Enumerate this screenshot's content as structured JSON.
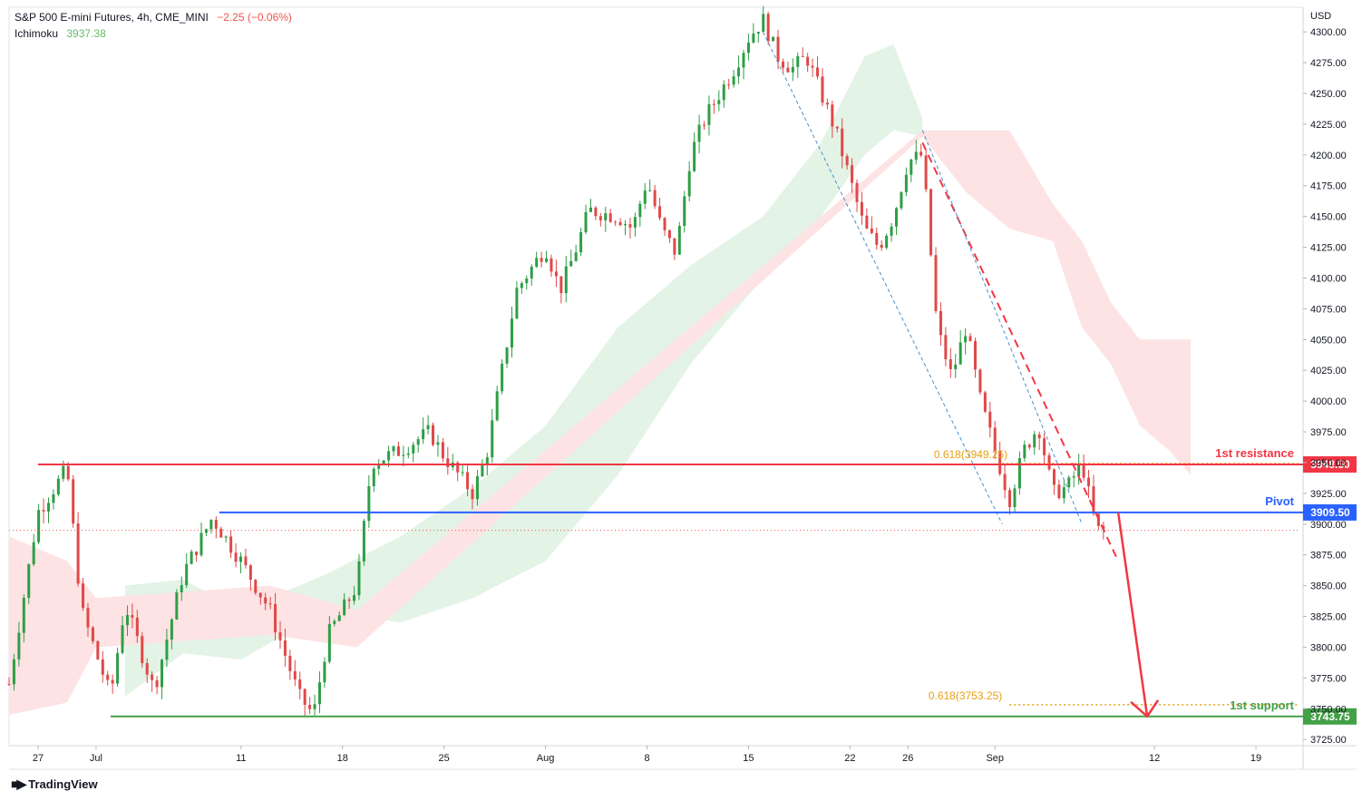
{
  "header": {
    "symbol_title": "S&P 500 E-mini Futures, 4h, CME_MINI",
    "change": "−2.25 (−0.06%)",
    "indicator_name": "Ichimoku",
    "indicator_value": "3937.38"
  },
  "footer": {
    "brand": "TradingView",
    "brand_icon": "tradingview-logo-icon"
  },
  "colors": {
    "up": "#26a69a",
    "down": "#ef5350",
    "candle_up": "#2e9e46",
    "candle_down": "#e04848",
    "resistance": "#f23645",
    "pivot": "#2962ff",
    "support": "#43a047",
    "fib": "#e6a117",
    "cloud_bull": "#e3f3e6",
    "cloud_bear": "#fde3e3"
  },
  "chart_data": {
    "type": "candlestick",
    "title": "S&P 500 E-mini Futures, 4h, CME_MINI",
    "currency": "USD",
    "ylim": [
      3720,
      4320
    ],
    "y_ticks": [
      3725,
      3750,
      3775,
      3800,
      3825,
      3850,
      3875,
      3900,
      3925,
      3950,
      3975,
      4000,
      4025,
      4050,
      4075,
      4100,
      4125,
      4150,
      4175,
      4200,
      4225,
      4250,
      4275,
      4300
    ],
    "x_ticks": [
      {
        "label": "27",
        "day": 0
      },
      {
        "label": "Jul",
        "day": 4
      },
      {
        "label": "11",
        "day": 14
      },
      {
        "label": "18",
        "day": 21
      },
      {
        "label": "25",
        "day": 28
      },
      {
        "label": "Aug",
        "day": 35
      },
      {
        "label": "8",
        "day": 42
      },
      {
        "label": "15",
        "day": 49
      },
      {
        "label": "22",
        "day": 56
      },
      {
        "label": "26",
        "day": 60
      },
      {
        "label": "Sep",
        "day": 66
      },
      {
        "label": "12",
        "day": 77
      },
      {
        "label": "19",
        "day": 84
      }
    ],
    "x_domain": [
      -2,
      87
    ],
    "price_path": [
      {
        "day": -2,
        "price": 3770
      },
      {
        "day": 0,
        "price": 3910
      },
      {
        "day": 2,
        "price": 3945
      },
      {
        "day": 3,
        "price": 3830
      },
      {
        "day": 5,
        "price": 3760
      },
      {
        "day": 6,
        "price": 3835
      },
      {
        "day": 8,
        "price": 3765
      },
      {
        "day": 10,
        "price": 3860
      },
      {
        "day": 12,
        "price": 3905
      },
      {
        "day": 14,
        "price": 3870
      },
      {
        "day": 16,
        "price": 3830
      },
      {
        "day": 18,
        "price": 3760
      },
      {
        "day": 19,
        "price": 3745
      },
      {
        "day": 20,
        "price": 3810
      },
      {
        "day": 22,
        "price": 3850
      },
      {
        "day": 23,
        "price": 3950
      },
      {
        "day": 25,
        "price": 3960
      },
      {
        "day": 27,
        "price": 3975
      },
      {
        "day": 28,
        "price": 3955
      },
      {
        "day": 30,
        "price": 3925
      },
      {
        "day": 31,
        "price": 3960
      },
      {
        "day": 32,
        "price": 4025
      },
      {
        "day": 33,
        "price": 4090
      },
      {
        "day": 35,
        "price": 4125
      },
      {
        "day": 36,
        "price": 4090
      },
      {
        "day": 37,
        "price": 4120
      },
      {
        "day": 38,
        "price": 4155
      },
      {
        "day": 40,
        "price": 4150
      },
      {
        "day": 41,
        "price": 4140
      },
      {
        "day": 42,
        "price": 4180
      },
      {
        "day": 43,
        "price": 4140
      },
      {
        "day": 44,
        "price": 4120
      },
      {
        "day": 45,
        "price": 4200
      },
      {
        "day": 46,
        "price": 4230
      },
      {
        "day": 47,
        "price": 4250
      },
      {
        "day": 48,
        "price": 4270
      },
      {
        "day": 49,
        "price": 4295
      },
      {
        "day": 50,
        "price": 4310
      },
      {
        "day": 51,
        "price": 4280
      },
      {
        "day": 52,
        "price": 4270
      },
      {
        "day": 53,
        "price": 4280
      },
      {
        "day": 54,
        "price": 4250
      },
      {
        "day": 55,
        "price": 4220
      },
      {
        "day": 56,
        "price": 4180
      },
      {
        "day": 57,
        "price": 4140
      },
      {
        "day": 58,
        "price": 4125
      },
      {
        "day": 59,
        "price": 4150
      },
      {
        "day": 60,
        "price": 4195
      },
      {
        "day": 61,
        "price": 4200
      },
      {
        "day": 62,
        "price": 4060
      },
      {
        "day": 63,
        "price": 4020
      },
      {
        "day": 64,
        "price": 4060
      },
      {
        "day": 65,
        "price": 4000
      },
      {
        "day": 66,
        "price": 3960
      },
      {
        "day": 67,
        "price": 3920
      },
      {
        "day": 68,
        "price": 3960
      },
      {
        "day": 69,
        "price": 3980
      },
      {
        "day": 70,
        "price": 3925
      },
      {
        "day": 71,
        "price": 3930
      },
      {
        "day": 72,
        "price": 3950
      },
      {
        "day": 73,
        "price": 3895
      },
      {
        "day": 73.5,
        "price": 3895
      }
    ],
    "ichimoku_cloud": {
      "bullish": [
        {
          "day": 6,
          "top": 3850,
          "bottom": 3760
        },
        {
          "day": 10,
          "top": 3855,
          "bottom": 3795
        },
        {
          "day": 14,
          "top": 3830,
          "bottom": 3790
        },
        {
          "day": 20,
          "top": 3860,
          "bottom": 3830
        },
        {
          "day": 25,
          "top": 3890,
          "bottom": 3820
        },
        {
          "day": 30,
          "top": 3930,
          "bottom": 3840
        },
        {
          "day": 35,
          "top": 3980,
          "bottom": 3870
        },
        {
          "day": 40,
          "top": 4060,
          "bottom": 3940
        },
        {
          "day": 45,
          "top": 4110,
          "bottom": 4030
        },
        {
          "day": 50,
          "top": 4150,
          "bottom": 4100
        },
        {
          "day": 54,
          "top": 4210,
          "bottom": 4150
        },
        {
          "day": 57,
          "top": 4280,
          "bottom": 4200
        },
        {
          "day": 59,
          "top": 4290,
          "bottom": 4220
        },
        {
          "day": 61,
          "top": 4230,
          "bottom": 4215
        }
      ],
      "bearish": [
        {
          "day": -2,
          "top": 3890,
          "bottom": 3745
        },
        {
          "day": 2,
          "top": 3870,
          "bottom": 3755
        },
        {
          "day": 4,
          "top": 3840,
          "bottom": 3800
        },
        {
          "day": 16,
          "top": 3850,
          "bottom": 3810
        },
        {
          "day": 22,
          "top": 3830,
          "bottom": 3800
        },
        {
          "day": 61,
          "top": 4220,
          "bottom": 4215
        },
        {
          "day": 64,
          "top": 4220,
          "bottom": 4170
        },
        {
          "day": 67,
          "top": 4220,
          "bottom": 4140
        },
        {
          "day": 70,
          "top": 4160,
          "bottom": 4130
        },
        {
          "day": 72,
          "top": 4130,
          "bottom": 4060
        },
        {
          "day": 74,
          "top": 4080,
          "bottom": 4030
        },
        {
          "day": 76,
          "top": 4050,
          "bottom": 3980
        },
        {
          "day": 78,
          "top": 4050,
          "bottom": 3960
        },
        {
          "day": 79.5,
          "top": 4050,
          "bottom": 3940
        }
      ]
    },
    "horizontal_levels": [
      {
        "name": "1st resistance",
        "value": 3948.5,
        "label": "3948.50",
        "color": "#f23645",
        "from_day": 0
      },
      {
        "name": "Pivot",
        "value": 3909.5,
        "label": "3909.50",
        "color": "#2962ff",
        "from_day": 12.5
      },
      {
        "name": "1st support",
        "value": 3743.75,
        "label": "3743.75",
        "color": "#43a047",
        "from_day": 5
      }
    ],
    "fib_levels": [
      {
        "label": "0.618(3949.25)",
        "value": 3949.25,
        "from_day": 66.5
      },
      {
        "label": "0.618(3753.25)",
        "value": 3753.25,
        "from_day": 67
      }
    ],
    "current_price": {
      "value": 3895
    },
    "projection_arrow": [
      {
        "day": 74.5,
        "price": 3909.5
      },
      {
        "day": 76.5,
        "price": 3743.75
      }
    ],
    "trendlines": [
      {
        "style": "dashed-red",
        "points": [
          {
            "day": 61,
            "price": 4210
          },
          {
            "day": 74.5,
            "price": 3870
          }
        ]
      },
      {
        "style": "dotted-blue",
        "points": [
          {
            "day": 50,
            "price": 4300
          },
          {
            "day": 66.5,
            "price": 3900
          }
        ]
      },
      {
        "style": "dotted-blue",
        "points": [
          {
            "day": 61,
            "price": 4220
          },
          {
            "day": 72,
            "price": 3900
          }
        ]
      }
    ]
  }
}
